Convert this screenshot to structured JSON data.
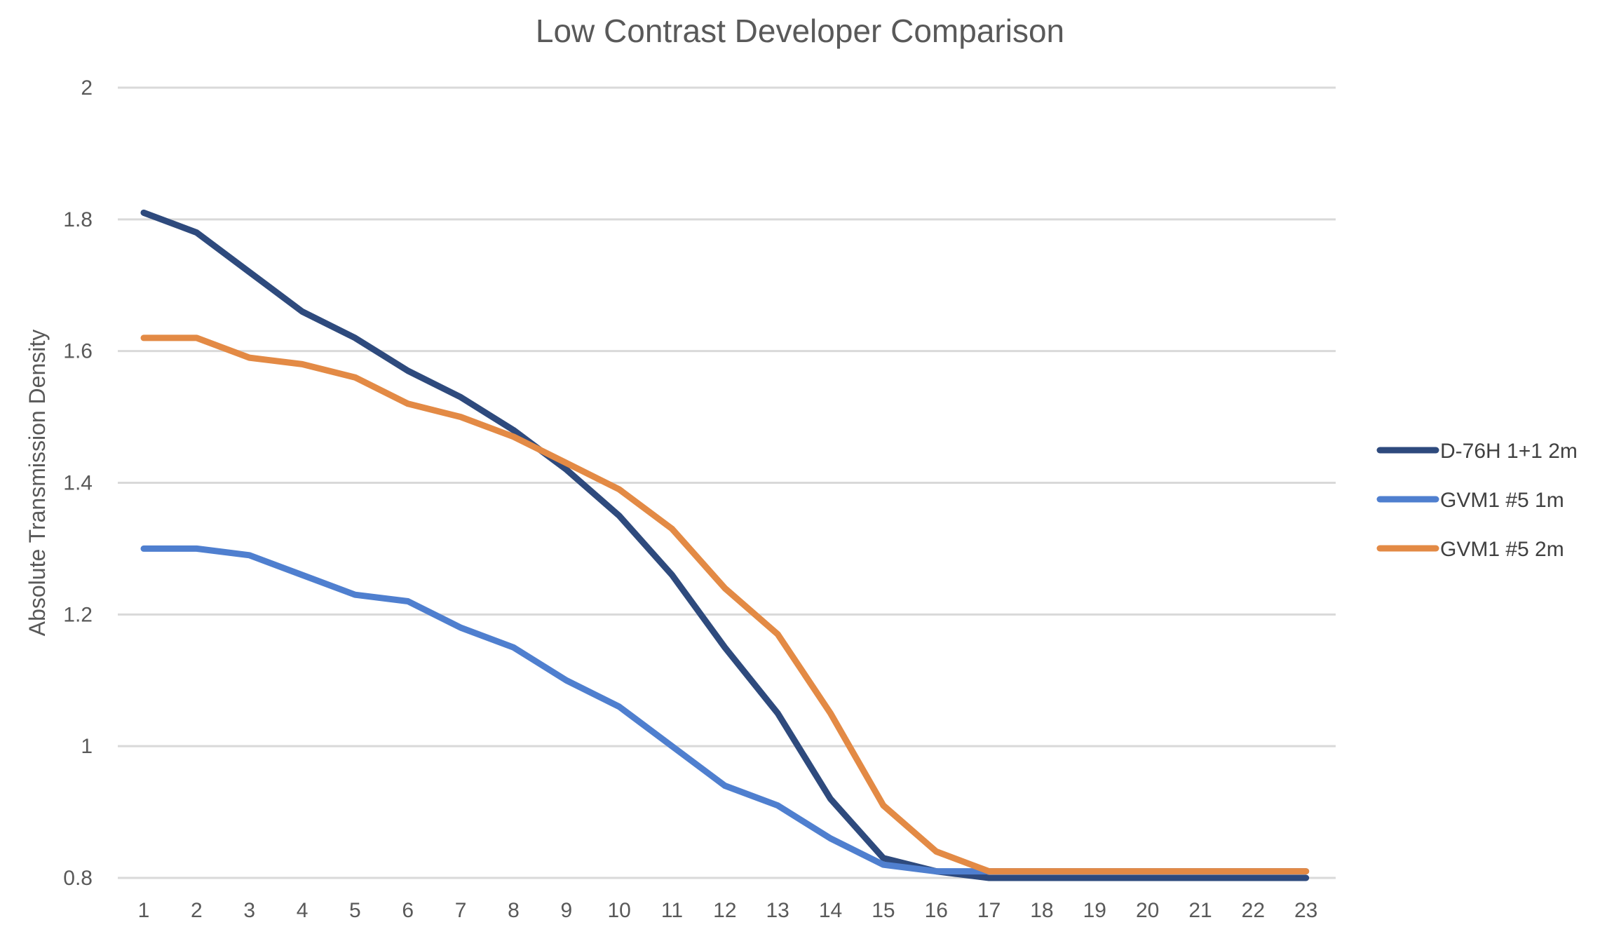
{
  "chart_data": {
    "type": "line",
    "title": "Low Contrast Developer Comparison",
    "xlabel": "",
    "ylabel": "Absolute Transmission Density",
    "categories": [
      "1",
      "2",
      "3",
      "4",
      "5",
      "6",
      "7",
      "8",
      "9",
      "10",
      "11",
      "12",
      "13",
      "14",
      "15",
      "16",
      "17",
      "18",
      "19",
      "20",
      "21",
      "22",
      "23"
    ],
    "ylim": [
      0.8,
      2
    ],
    "yticks": [
      0.8,
      1,
      1.2,
      1.4,
      1.6,
      1.8,
      2
    ],
    "ytick_labels": [
      "0.8",
      "1",
      "1.2",
      "1.4",
      "1.6",
      "1.8",
      "2"
    ],
    "grid": true,
    "legend_position": "right",
    "series": [
      {
        "name": "D-76H 1+1 2m",
        "color": "#2e4a7d",
        "values": [
          1.81,
          1.78,
          1.72,
          1.66,
          1.62,
          1.57,
          1.53,
          1.48,
          1.42,
          1.35,
          1.26,
          1.15,
          1.05,
          0.92,
          0.83,
          0.81,
          0.8,
          0.8,
          0.8,
          0.8,
          0.8,
          0.8,
          0.8
        ]
      },
      {
        "name": "GVM1 #5 1m",
        "color": "#4f7fcf",
        "values": [
          1.3,
          1.3,
          1.29,
          1.26,
          1.23,
          1.22,
          1.18,
          1.15,
          1.1,
          1.06,
          1.0,
          0.94,
          0.91,
          0.86,
          0.82,
          0.81,
          0.81,
          0.81,
          0.81,
          0.81,
          0.81,
          0.81,
          0.81
        ]
      },
      {
        "name": "GVM1 #5 2m",
        "color": "#e38a45",
        "values": [
          1.62,
          1.62,
          1.59,
          1.58,
          1.56,
          1.52,
          1.5,
          1.47,
          1.43,
          1.39,
          1.33,
          1.24,
          1.17,
          1.05,
          0.91,
          0.84,
          0.81,
          0.81,
          0.81,
          0.81,
          0.81,
          0.81,
          0.81
        ]
      }
    ]
  }
}
